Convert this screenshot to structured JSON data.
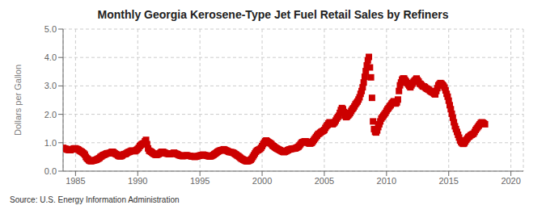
{
  "chart_data": {
    "type": "scatter",
    "title": "Monthly Georgia Kerosene-Type Jet Fuel Retail Sales by Refiners",
    "ylabel": "Dollars per Gallon",
    "source": "Source: U.S. Energy Information Administration",
    "xlim": [
      1984.0,
      2021.0
    ],
    "ylim": [
      0.0,
      5.0
    ],
    "xticks": [
      1985,
      1990,
      1995,
      2000,
      2005,
      2010,
      2015,
      2020
    ],
    "yticks": [
      {
        "value": 0.0,
        "label": "0.0"
      },
      {
        "value": 1.0,
        "label": "1.0"
      },
      {
        "value": 2.0,
        "label": "2.0"
      },
      {
        "value": 3.0,
        "label": "3.0"
      },
      {
        "value": 4.0,
        "label": "4.0"
      },
      {
        "value": 5.0,
        "label": "5.0"
      }
    ],
    "color": "#cc0000",
    "marker": "square",
    "grid": true,
    "x": [
      1984.0,
      1984.083,
      1984.167,
      1984.25,
      1984.333,
      1984.417,
      1984.5,
      1984.583,
      1984.667,
      1984.75,
      1984.833,
      1984.917,
      1985.0,
      1985.083,
      1985.167,
      1985.25,
      1985.333,
      1985.417,
      1985.5,
      1985.583,
      1985.667,
      1985.75,
      1985.833,
      1985.917,
      1986.0,
      1986.083,
      1986.167,
      1986.25,
      1986.333,
      1986.417,
      1986.5,
      1986.583,
      1986.667,
      1986.75,
      1986.833,
      1986.917,
      1987.0,
      1987.083,
      1987.167,
      1987.25,
      1987.333,
      1987.417,
      1987.5,
      1987.583,
      1987.667,
      1987.75,
      1987.833,
      1987.917,
      1988.0,
      1988.083,
      1988.167,
      1988.25,
      1988.333,
      1988.417,
      1988.5,
      1988.583,
      1988.667,
      1988.75,
      1988.833,
      1988.917,
      1989.0,
      1989.083,
      1989.167,
      1989.25,
      1989.333,
      1989.417,
      1989.5,
      1989.583,
      1989.667,
      1989.75,
      1989.833,
      1989.917,
      1990.0,
      1990.083,
      1990.167,
      1990.25,
      1990.333,
      1990.417,
      1990.5,
      1990.583,
      1990.667,
      1990.75,
      1990.833,
      1990.917,
      1991.0,
      1991.083,
      1991.167,
      1991.25,
      1991.333,
      1991.417,
      1991.5,
      1991.583,
      1991.667,
      1991.75,
      1991.833,
      1991.917,
      1992.0,
      1992.083,
      1992.167,
      1992.25,
      1992.333,
      1992.417,
      1992.5,
      1992.583,
      1992.667,
      1992.75,
      1992.833,
      1992.917,
      1993.0,
      1993.083,
      1993.167,
      1993.25,
      1993.333,
      1993.417,
      1993.5,
      1993.583,
      1993.667,
      1993.75,
      1993.833,
      1993.917,
      1994.0,
      1994.083,
      1994.167,
      1994.25,
      1994.333,
      1994.417,
      1994.5,
      1994.583,
      1994.667,
      1994.75,
      1994.833,
      1994.917,
      1995.0,
      1995.083,
      1995.167,
      1995.25,
      1995.333,
      1995.417,
      1995.5,
      1995.583,
      1995.667,
      1995.75,
      1995.833,
      1995.917,
      1996.0,
      1996.083,
      1996.167,
      1996.25,
      1996.333,
      1996.417,
      1996.5,
      1996.583,
      1996.667,
      1996.75,
      1996.833,
      1996.917,
      1997.0,
      1997.083,
      1997.167,
      1997.25,
      1997.333,
      1997.417,
      1997.5,
      1997.583,
      1997.667,
      1997.75,
      1997.833,
      1997.917,
      1998.0,
      1998.083,
      1998.167,
      1998.25,
      1998.333,
      1998.417,
      1998.5,
      1998.583,
      1998.667,
      1998.75,
      1998.833,
      1998.917,
      1999.0,
      1999.083,
      1999.167,
      1999.25,
      1999.333,
      1999.417,
      1999.5,
      1999.583,
      1999.667,
      1999.75,
      1999.833,
      1999.917,
      2000.0,
      2000.083,
      2000.167,
      2000.25,
      2000.333,
      2000.417,
      2000.5,
      2000.583,
      2000.667,
      2000.75,
      2000.833,
      2000.917,
      2001.0,
      2001.083,
      2001.167,
      2001.25,
      2001.333,
      2001.417,
      2001.5,
      2001.583,
      2001.667,
      2001.75,
      2001.833,
      2001.917,
      2002.0,
      2002.083,
      2002.167,
      2002.25,
      2002.333,
      2002.417,
      2002.5,
      2002.583,
      2002.667,
      2002.75,
      2002.833,
      2002.917,
      2003.0,
      2003.083,
      2003.167,
      2003.25,
      2003.333,
      2003.417,
      2003.5,
      2003.583,
      2003.667,
      2003.75,
      2003.833,
      2003.917,
      2004.0,
      2004.083,
      2004.167,
      2004.25,
      2004.333,
      2004.417,
      2004.5,
      2004.583,
      2004.667,
      2004.75,
      2004.833,
      2004.917,
      2005.0,
      2005.083,
      2005.167,
      2005.25,
      2005.333,
      2005.417,
      2005.5,
      2005.583,
      2005.667,
      2005.75,
      2005.833,
      2005.917,
      2006.0,
      2006.083,
      2006.167,
      2006.25,
      2006.333,
      2006.417,
      2006.5,
      2006.583,
      2006.667,
      2006.75,
      2006.833,
      2006.917,
      2007.0,
      2007.083,
      2007.167,
      2007.25,
      2007.333,
      2007.417,
      2007.5,
      2007.583,
      2007.667,
      2007.75,
      2007.833,
      2007.917,
      2008.0,
      2008.083,
      2008.167,
      2008.25,
      2008.333,
      2008.417,
      2008.5,
      2008.583,
      2008.667,
      2008.75,
      2008.833,
      2008.917,
      2009.0,
      2009.083,
      2009.167,
      2009.25,
      2009.333,
      2009.417,
      2009.5,
      2009.583,
      2009.667,
      2009.75,
      2009.833,
      2009.917,
      2010.0,
      2010.083,
      2010.167,
      2010.25,
      2010.333,
      2010.417,
      2010.5,
      2010.583,
      2010.667,
      2010.75,
      2010.833,
      2010.917,
      2011.0,
      2011.083,
      2011.167,
      2011.25,
      2011.333,
      2011.417,
      2011.5,
      2011.583,
      2011.667,
      2011.75,
      2011.833,
      2011.917,
      2012.0,
      2012.083,
      2012.167,
      2012.25,
      2012.333,
      2012.417,
      2012.5,
      2012.583,
      2012.667,
      2012.75,
      2012.833,
      2012.917,
      2013.0,
      2013.083,
      2013.167,
      2013.25,
      2013.333,
      2013.417,
      2013.5,
      2013.583,
      2013.667,
      2013.75,
      2013.833,
      2013.917,
      2014.0,
      2014.083,
      2014.167,
      2014.25,
      2014.333,
      2014.417,
      2014.5,
      2014.583,
      2014.667,
      2014.75,
      2014.833,
      2014.917,
      2015.0,
      2015.083,
      2015.167,
      2015.25,
      2015.333,
      2015.417,
      2015.5,
      2015.583,
      2015.667,
      2015.75,
      2015.833,
      2015.917,
      2016.0,
      2016.083,
      2016.167,
      2016.25,
      2016.333,
      2016.417,
      2016.5,
      2016.583,
      2016.667,
      2016.75,
      2016.833,
      2016.917,
      2017.0,
      2017.083,
      2017.167,
      2017.25,
      2017.333,
      2017.417,
      2017.5,
      2017.583,
      2017.667,
      2017.75,
      2017.833,
      2017.917
    ],
    "values": [
      0.82,
      0.8,
      0.79,
      0.78,
      0.76,
      0.75,
      0.74,
      0.74,
      0.76,
      0.77,
      0.79,
      0.8,
      0.8,
      0.78,
      0.77,
      0.75,
      0.72,
      0.7,
      0.68,
      0.65,
      0.62,
      0.58,
      0.5,
      0.45,
      0.42,
      0.38,
      0.36,
      0.35,
      0.36,
      0.37,
      0.38,
      0.39,
      0.4,
      0.42,
      0.44,
      0.46,
      0.5,
      0.52,
      0.55,
      0.57,
      0.58,
      0.6,
      0.62,
      0.63,
      0.63,
      0.64,
      0.65,
      0.68,
      0.68,
      0.65,
      0.62,
      0.6,
      0.58,
      0.55,
      0.53,
      0.52,
      0.53,
      0.55,
      0.58,
      0.6,
      0.6,
      0.62,
      0.65,
      0.67,
      0.68,
      0.7,
      0.72,
      0.72,
      0.71,
      0.7,
      0.72,
      0.75,
      0.78,
      0.82,
      0.88,
      0.92,
      0.95,
      0.97,
      0.98,
      1.05,
      1.1,
      0.95,
      0.8,
      0.72,
      0.7,
      0.68,
      0.65,
      0.62,
      0.6,
      0.58,
      0.57,
      0.58,
      0.6,
      0.62,
      0.65,
      0.68,
      0.68,
      0.67,
      0.65,
      0.63,
      0.62,
      0.61,
      0.6,
      0.6,
      0.61,
      0.62,
      0.63,
      0.65,
      0.63,
      0.61,
      0.6,
      0.58,
      0.56,
      0.55,
      0.54,
      0.53,
      0.53,
      0.54,
      0.55,
      0.56,
      0.55,
      0.54,
      0.54,
      0.53,
      0.52,
      0.52,
      0.51,
      0.5,
      0.51,
      0.52,
      0.53,
      0.54,
      0.55,
      0.56,
      0.57,
      0.58,
      0.57,
      0.56,
      0.55,
      0.54,
      0.53,
      0.52,
      0.52,
      0.53,
      0.55,
      0.57,
      0.6,
      0.62,
      0.65,
      0.68,
      0.7,
      0.72,
      0.73,
      0.74,
      0.75,
      0.77,
      0.75,
      0.73,
      0.72,
      0.7,
      0.68,
      0.67,
      0.67,
      0.66,
      0.65,
      0.63,
      0.6,
      0.58,
      0.55,
      0.53,
      0.5,
      0.47,
      0.44,
      0.42,
      0.4,
      0.38,
      0.36,
      0.35,
      0.35,
      0.36,
      0.38,
      0.4,
      0.44,
      0.5,
      0.56,
      0.62,
      0.68,
      0.72,
      0.74,
      0.76,
      0.78,
      0.82,
      0.88,
      0.95,
      1.0,
      1.05,
      1.08,
      1.05,
      1.02,
      1.0,
      0.98,
      0.95,
      0.9,
      0.88,
      0.85,
      0.82,
      0.8,
      0.78,
      0.76,
      0.74,
      0.72,
      0.7,
      0.68,
      0.67,
      0.68,
      0.7,
      0.72,
      0.74,
      0.76,
      0.77,
      0.78,
      0.79,
      0.79,
      0.8,
      0.8,
      0.82,
      0.84,
      0.86,
      0.9,
      0.95,
      1.0,
      1.02,
      1.03,
      1.05,
      1.05,
      1.03,
      1.0,
      0.98,
      0.97,
      0.98,
      1.0,
      1.05,
      1.1,
      1.15,
      1.2,
      1.25,
      1.3,
      1.32,
      1.35,
      1.38,
      1.4,
      1.42,
      1.45,
      1.52,
      1.58,
      1.62,
      1.68,
      1.72,
      1.7,
      1.68,
      1.65,
      1.68,
      1.72,
      1.78,
      1.85,
      1.9,
      1.95,
      2.05,
      2.15,
      2.22,
      2.18,
      2.08,
      1.95,
      1.9,
      1.92,
      1.96,
      2.0,
      2.05,
      2.12,
      2.18,
      2.22,
      2.28,
      2.35,
      2.4,
      2.45,
      2.52,
      2.6,
      2.72,
      2.82,
      2.95,
      3.12,
      3.32,
      3.52,
      3.72,
      3.9,
      4.02,
      3.65,
      3.3,
      2.58,
      1.75,
      1.48,
      1.38,
      1.36,
      1.43,
      1.55,
      1.65,
      1.75,
      1.85,
      1.9,
      1.95,
      2.0,
      2.05,
      2.12,
      2.18,
      2.22,
      2.28,
      2.32,
      2.38,
      2.42,
      2.46,
      2.4,
      2.38,
      2.42,
      2.52,
      2.82,
      3.02,
      3.12,
      3.22,
      3.26,
      3.26,
      3.2,
      3.15,
      3.1,
      3.05,
      3.0,
      2.95,
      3.02,
      3.08,
      3.14,
      3.18,
      3.22,
      3.26,
      3.2,
      3.15,
      3.08,
      3.06,
      3.02,
      2.98,
      2.98,
      2.96,
      2.92,
      2.9,
      2.88,
      2.86,
      2.82,
      2.8,
      2.78,
      2.76,
      2.72,
      2.7,
      2.82,
      2.92,
      3.02,
      3.06,
      3.1,
      3.08,
      3.04,
      3.0,
      2.94,
      2.84,
      2.72,
      2.62,
      2.48,
      2.32,
      2.18,
      2.02,
      1.88,
      1.72,
      1.58,
      1.48,
      1.38,
      1.28,
      1.18,
      1.08,
      1.02,
      0.98,
      0.96,
      0.98,
      1.04,
      1.1,
      1.15,
      1.2,
      1.22,
      1.26,
      1.28,
      1.3,
      1.32,
      1.38,
      1.45,
      1.5,
      1.55,
      1.6,
      1.65,
      1.7,
      1.72,
      1.7,
      1.68,
      1.65
    ]
  }
}
